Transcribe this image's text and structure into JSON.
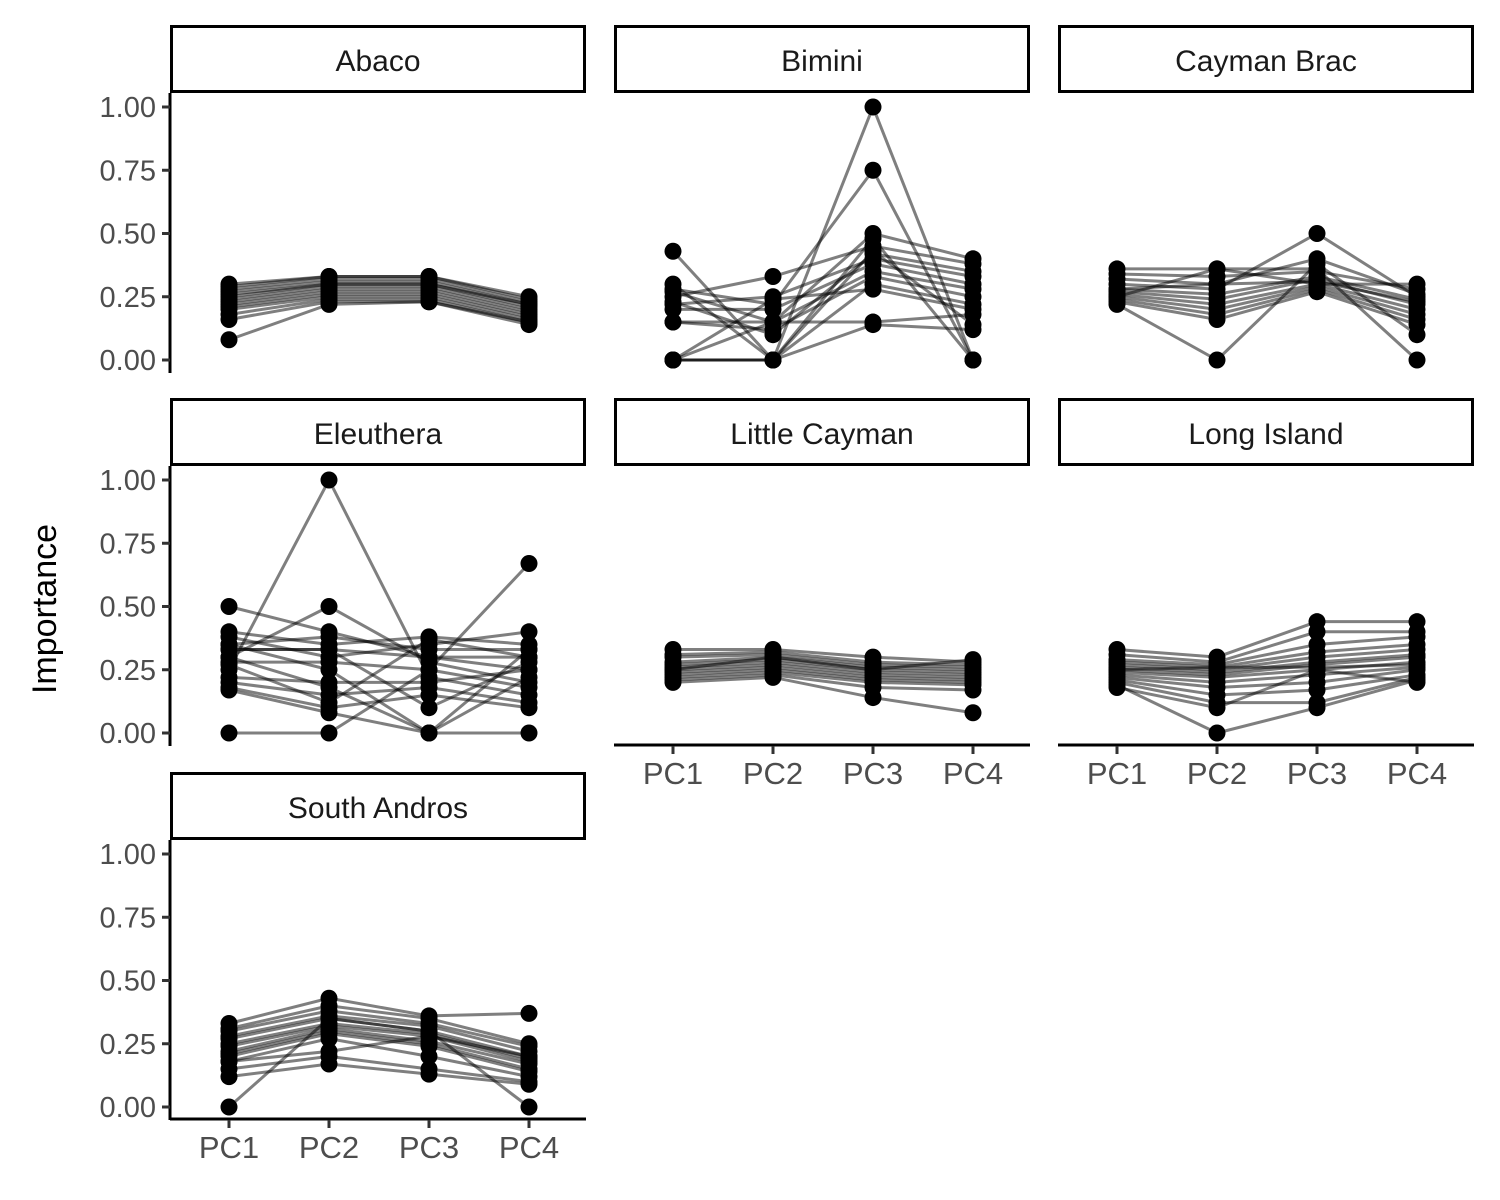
{
  "chart_data": {
    "type": "line",
    "ylabel": "Importance",
    "xlabel": "",
    "categories": [
      "PC1",
      "PC2",
      "PC3",
      "PC4"
    ],
    "ylim": [
      0,
      1
    ],
    "yticks": [
      "0.00",
      "0.25",
      "0.50",
      "0.75",
      "1.00"
    ],
    "grid": false,
    "legend": "none",
    "line_color": "#000000",
    "point_color": "#000000",
    "facets": [
      {
        "name": "Abaco",
        "series": [
          [
            0.3,
            0.33,
            0.33,
            0.25
          ],
          [
            0.29,
            0.33,
            0.33,
            0.24
          ],
          [
            0.28,
            0.32,
            0.32,
            0.23
          ],
          [
            0.27,
            0.31,
            0.31,
            0.22
          ],
          [
            0.26,
            0.3,
            0.3,
            0.22
          ],
          [
            0.25,
            0.3,
            0.3,
            0.21
          ],
          [
            0.24,
            0.29,
            0.29,
            0.2
          ],
          [
            0.23,
            0.28,
            0.28,
            0.19
          ],
          [
            0.22,
            0.27,
            0.27,
            0.18
          ],
          [
            0.21,
            0.26,
            0.26,
            0.17
          ],
          [
            0.2,
            0.25,
            0.25,
            0.16
          ],
          [
            0.18,
            0.24,
            0.24,
            0.15
          ],
          [
            0.16,
            0.23,
            0.23,
            0.15
          ],
          [
            0.08,
            0.22,
            0.23,
            0.14
          ]
        ]
      },
      {
        "name": "Bimini",
        "series": [
          [
            0.43,
            0.0,
            0.43,
            0.14
          ],
          [
            0.3,
            0.0,
            1.0,
            0.0
          ],
          [
            0.28,
            0.22,
            0.75,
            0.0
          ],
          [
            0.27,
            0.15,
            0.5,
            0.4
          ],
          [
            0.25,
            0.33,
            0.45,
            0.38
          ],
          [
            0.23,
            0.1,
            0.42,
            0.35
          ],
          [
            0.22,
            0.25,
            0.4,
            0.33
          ],
          [
            0.2,
            0.2,
            0.38,
            0.3
          ],
          [
            0.15,
            0.15,
            0.35,
            0.28
          ],
          [
            0.15,
            0.12,
            0.33,
            0.25
          ],
          [
            0.0,
            0.0,
            0.3,
            0.22
          ],
          [
            0.0,
            0.24,
            0.28,
            0.2
          ],
          [
            0.0,
            0.0,
            0.14,
            0.12
          ],
          [
            0.0,
            0.15,
            0.15,
            0.18
          ],
          [
            0.0,
            0.0,
            0.48,
            0.0
          ]
        ]
      },
      {
        "name": "Cayman Brac",
        "series": [
          [
            0.36,
            0.36,
            0.3,
            0.3
          ],
          [
            0.34,
            0.33,
            0.35,
            0.28
          ],
          [
            0.32,
            0.3,
            0.4,
            0.26
          ],
          [
            0.3,
            0.28,
            0.5,
            0.25
          ],
          [
            0.28,
            0.26,
            0.33,
            0.24
          ],
          [
            0.27,
            0.24,
            0.32,
            0.22
          ],
          [
            0.26,
            0.22,
            0.3,
            0.2
          ],
          [
            0.25,
            0.2,
            0.29,
            0.18
          ],
          [
            0.24,
            0.18,
            0.28,
            0.16
          ],
          [
            0.23,
            0.16,
            0.27,
            0.14
          ],
          [
            0.22,
            0.0,
            0.38,
            0.1
          ],
          [
            0.25,
            0.36,
            0.36,
            0.0
          ],
          [
            0.28,
            0.3,
            0.31,
            0.23
          ]
        ]
      },
      {
        "name": "Eleuthera",
        "series": [
          [
            0.5,
            0.4,
            0.3,
            0.3
          ],
          [
            0.4,
            0.35,
            0.38,
            0.35
          ],
          [
            0.38,
            0.3,
            0.35,
            0.4
          ],
          [
            0.35,
            0.38,
            0.33,
            0.33
          ],
          [
            0.33,
            0.33,
            0.3,
            0.25
          ],
          [
            0.3,
            0.5,
            0.28,
            0.2
          ],
          [
            0.28,
            0.28,
            0.25,
            0.18
          ],
          [
            0.25,
            1.0,
            0.22,
            0.15
          ],
          [
            0.22,
            0.2,
            0.2,
            0.25
          ],
          [
            0.2,
            0.15,
            0.18,
            0.12
          ],
          [
            0.18,
            0.1,
            0.15,
            0.1
          ],
          [
            0.17,
            0.08,
            0.0,
            0.0
          ],
          [
            0.0,
            0.0,
            0.25,
            0.67
          ],
          [
            0.35,
            0.25,
            0.0,
            0.33
          ],
          [
            0.33,
            0.33,
            0.1,
            0.28
          ],
          [
            0.3,
            0.18,
            0.0,
            0.22
          ],
          [
            0.27,
            0.12,
            0.37,
            0.3
          ]
        ]
      },
      {
        "name": "Little Cayman",
        "series": [
          [
            0.33,
            0.33,
            0.3,
            0.28
          ],
          [
            0.31,
            0.32,
            0.28,
            0.27
          ],
          [
            0.3,
            0.31,
            0.27,
            0.26
          ],
          [
            0.28,
            0.3,
            0.26,
            0.25
          ],
          [
            0.27,
            0.29,
            0.25,
            0.24
          ],
          [
            0.26,
            0.28,
            0.24,
            0.23
          ],
          [
            0.25,
            0.27,
            0.23,
            0.22
          ],
          [
            0.24,
            0.26,
            0.22,
            0.21
          ],
          [
            0.23,
            0.25,
            0.21,
            0.2
          ],
          [
            0.22,
            0.24,
            0.2,
            0.19
          ],
          [
            0.21,
            0.23,
            0.18,
            0.17
          ],
          [
            0.2,
            0.22,
            0.14,
            0.08
          ],
          [
            0.25,
            0.3,
            0.25,
            0.29
          ]
        ]
      },
      {
        "name": "Long Island",
        "series": [
          [
            0.33,
            0.3,
            0.44,
            0.44
          ],
          [
            0.31,
            0.28,
            0.4,
            0.4
          ],
          [
            0.29,
            0.27,
            0.35,
            0.38
          ],
          [
            0.28,
            0.26,
            0.32,
            0.35
          ],
          [
            0.27,
            0.25,
            0.3,
            0.33
          ],
          [
            0.26,
            0.24,
            0.28,
            0.31
          ],
          [
            0.25,
            0.23,
            0.27,
            0.3
          ],
          [
            0.24,
            0.22,
            0.25,
            0.28
          ],
          [
            0.23,
            0.2,
            0.23,
            0.26
          ],
          [
            0.22,
            0.18,
            0.2,
            0.25
          ],
          [
            0.21,
            0.15,
            0.17,
            0.23
          ],
          [
            0.2,
            0.12,
            0.12,
            0.22
          ],
          [
            0.19,
            0.0,
            0.1,
            0.21
          ],
          [
            0.18,
            0.1,
            0.25,
            0.2
          ],
          [
            0.25,
            0.26,
            0.26,
            0.27
          ]
        ]
      },
      {
        "name": "South Andros",
        "series": [
          [
            0.33,
            0.43,
            0.36,
            0.37
          ],
          [
            0.31,
            0.4,
            0.35,
            0.25
          ],
          [
            0.3,
            0.38,
            0.33,
            0.24
          ],
          [
            0.28,
            0.36,
            0.32,
            0.22
          ],
          [
            0.27,
            0.35,
            0.3,
            0.2
          ],
          [
            0.25,
            0.33,
            0.29,
            0.19
          ],
          [
            0.24,
            0.32,
            0.28,
            0.18
          ],
          [
            0.22,
            0.31,
            0.26,
            0.17
          ],
          [
            0.21,
            0.3,
            0.25,
            0.15
          ],
          [
            0.2,
            0.29,
            0.24,
            0.14
          ],
          [
            0.18,
            0.27,
            0.2,
            0.12
          ],
          [
            0.15,
            0.2,
            0.15,
            0.1
          ],
          [
            0.12,
            0.17,
            0.13,
            0.09
          ],
          [
            0.0,
            0.35,
            0.3,
            0.0
          ],
          [
            0.18,
            0.22,
            0.28,
            0.2
          ]
        ]
      }
    ]
  }
}
